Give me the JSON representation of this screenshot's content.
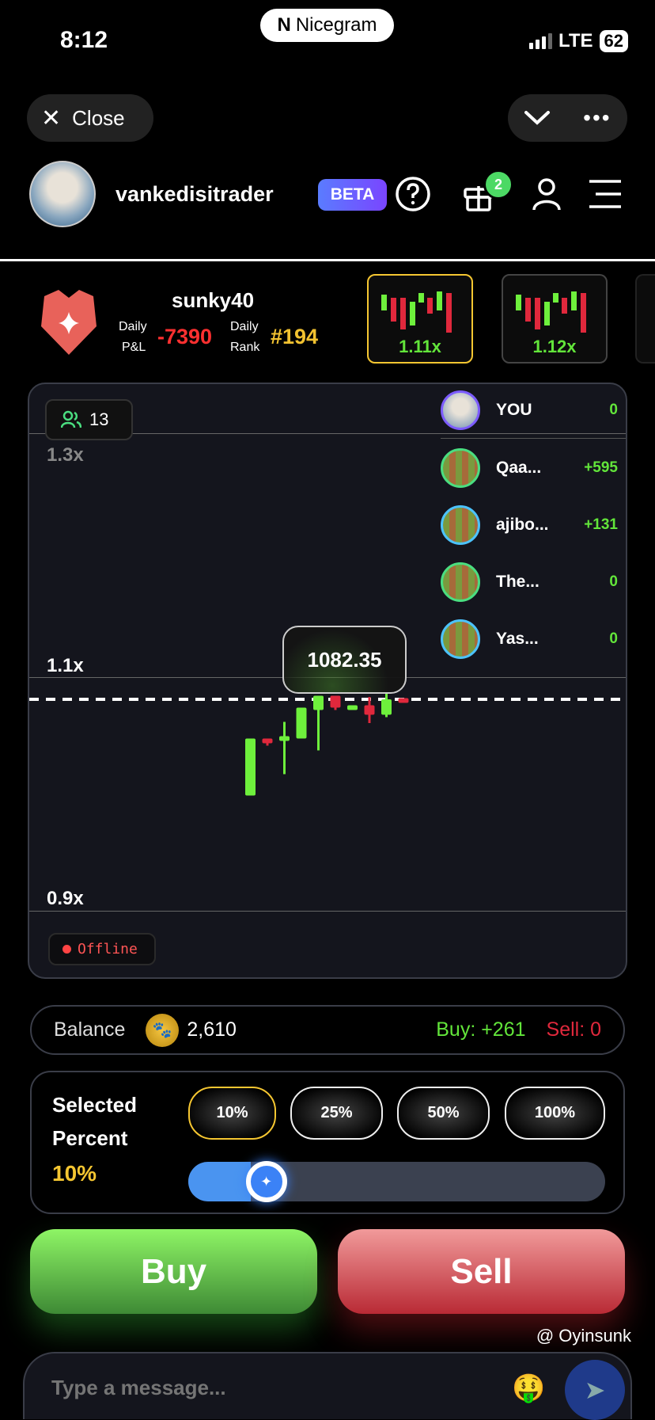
{
  "status_bar": {
    "time": "8:12",
    "app_pill": "Nicegram",
    "network": "LTE",
    "battery": "62"
  },
  "nav": {
    "close_label": "Close",
    "chevron_icon": "chevron-down-icon",
    "more_icon": "more-icon"
  },
  "header": {
    "username": "vankedisitrader",
    "beta_label": "BETA",
    "gift_badge": "2"
  },
  "profile": {
    "name": "sunky40",
    "pnl_label_1": "Daily",
    "pnl_label_2": "P&L",
    "pnl_value": "-7390",
    "rank_label_1": "Daily",
    "rank_label_2": "Rank",
    "rank_value": "#194"
  },
  "game_cards": [
    {
      "label": "1.11x",
      "selected": true
    },
    {
      "label": "1.12x",
      "selected": false
    }
  ],
  "chart": {
    "users_count": "13",
    "axis_labels": [
      "1.3x",
      "1.1x",
      "0.9x"
    ],
    "price": "1082.35",
    "status": "Offline"
  },
  "leaderboard": [
    {
      "name": "YOU",
      "value": "0"
    },
    {
      "name": "Qaa...",
      "value": "+595"
    },
    {
      "name": "ajibo...",
      "value": "+131"
    },
    {
      "name": "The...",
      "value": "0"
    },
    {
      "name": "Yas...",
      "value": "0"
    }
  ],
  "chart_data": {
    "type": "candlestick",
    "y_ticks": [
      1.3,
      1.1,
      0.9
    ],
    "current": 1.082,
    "candles": [
      {
        "o": 1.001,
        "h": 1.049,
        "l": 1.001,
        "c": 1.049
      },
      {
        "o": 1.049,
        "h": 1.049,
        "l": 1.043,
        "c": 1.045
      },
      {
        "o": 1.047,
        "h": 1.063,
        "l": 1.019,
        "c": 1.051
      },
      {
        "o": 1.049,
        "h": 1.075,
        "l": 1.049,
        "c": 1.075
      },
      {
        "o": 1.073,
        "h": 1.085,
        "l": 1.039,
        "c": 1.085
      },
      {
        "o": 1.085,
        "h": 1.085,
        "l": 1.073,
        "c": 1.075
      },
      {
        "o": 1.073,
        "h": 1.077,
        "l": 1.073,
        "c": 1.077
      },
      {
        "o": 1.077,
        "h": 1.084,
        "l": 1.062,
        "c": 1.069
      },
      {
        "o": 1.069,
        "h": 1.087,
        "l": 1.067,
        "c": 1.082
      },
      {
        "o": 1.083,
        "h": 1.083,
        "l": 1.079,
        "c": 1.079
      }
    ],
    "colors": {
      "up": "#6ef03c",
      "down": "#e0283c"
    }
  },
  "balance": {
    "label": "Balance",
    "value": "2,610",
    "buy": "Buy: +261",
    "sell": "Sell: 0"
  },
  "percent": {
    "title_1": "Selected",
    "title_2": "Percent",
    "value": "10%",
    "options": [
      "10%",
      "25%",
      "50%",
      "100%"
    ],
    "slider_percent": 10
  },
  "actions": {
    "buy": "Buy",
    "sell": "Sell"
  },
  "chat": {
    "placeholder": "Type a message...",
    "watermark": "@ Oyinsunk"
  }
}
